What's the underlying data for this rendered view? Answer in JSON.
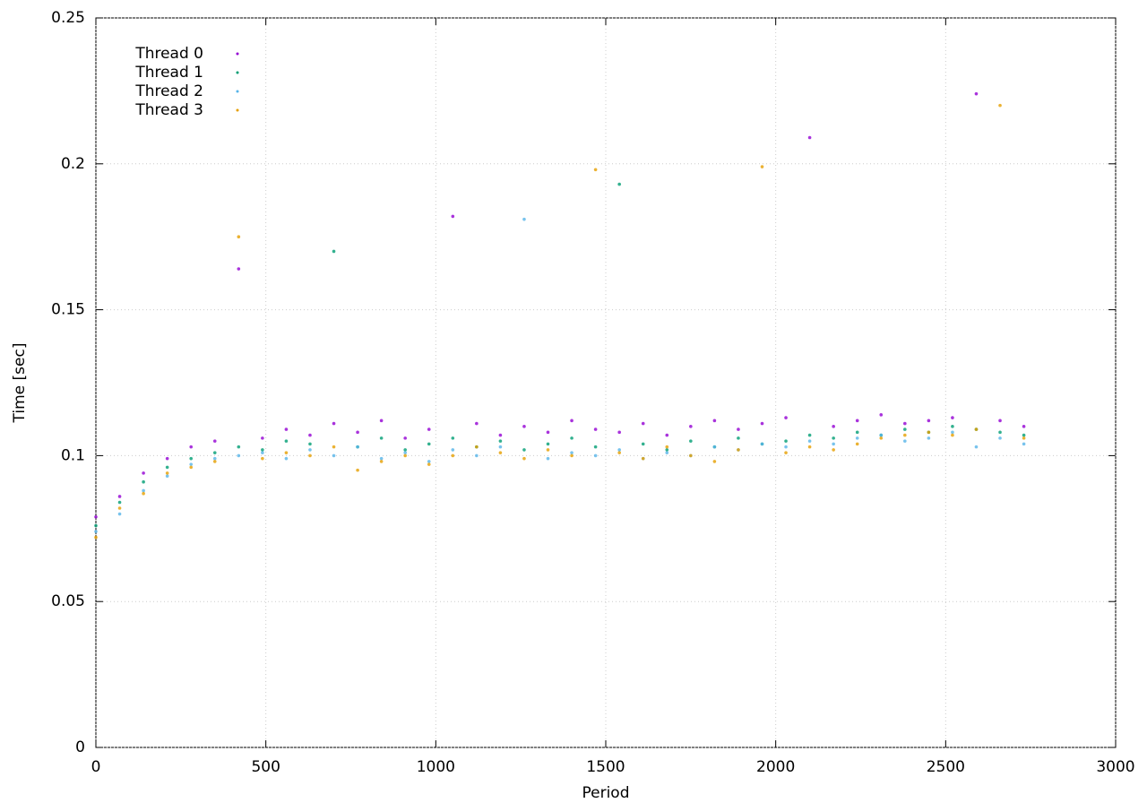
{
  "chart_data": {
    "type": "scatter",
    "x_label": "Period",
    "y_label": "Time [sec]",
    "xlim": [
      0,
      3000
    ],
    "xticks": [
      0,
      500,
      1000,
      1500,
      2000,
      2500,
      3000
    ],
    "ylim": [
      0,
      0.25
    ],
    "yticks": [
      0,
      0.05,
      0.1,
      0.15,
      0.2,
      0.25
    ],
    "grid": true,
    "legend": "top-left",
    "x": [
      0,
      70,
      140,
      210,
      280,
      350,
      420,
      490,
      560,
      630,
      700,
      770,
      840,
      910,
      980,
      1050,
      1120,
      1190,
      1260,
      1330,
      1400,
      1470,
      1540,
      1610,
      1680,
      1750,
      1820,
      1890,
      1960,
      2030,
      2100,
      2170,
      2240,
      2310,
      2380,
      2450,
      2520,
      2590,
      2660,
      2730
    ],
    "series": [
      {
        "name": "Thread 0",
        "color": "#9400d3",
        "values": [
          0.079,
          0.086,
          0.094,
          0.099,
          0.103,
          0.105,
          0.164,
          0.106,
          0.109,
          0.107,
          0.111,
          0.108,
          0.112,
          0.106,
          0.109,
          0.182,
          0.111,
          0.107,
          0.11,
          0.108,
          0.112,
          0.109,
          0.108,
          0.111,
          0.107,
          0.11,
          0.112,
          0.109,
          0.111,
          0.113,
          0.209,
          0.11,
          0.112,
          0.114,
          0.111,
          0.112,
          0.113,
          0.224,
          0.112,
          0.11
        ]
      },
      {
        "name": "Thread 1",
        "color": "#009e73",
        "values": [
          0.076,
          0.084,
          0.091,
          0.096,
          0.099,
          0.101,
          0.103,
          0.102,
          0.105,
          0.104,
          0.17,
          0.103,
          0.106,
          0.102,
          0.104,
          0.106,
          0.103,
          0.105,
          0.102,
          0.104,
          0.106,
          0.103,
          0.193,
          0.104,
          0.102,
          0.105,
          0.103,
          0.106,
          0.104,
          0.105,
          0.107,
          0.106,
          0.108,
          0.107,
          0.109,
          0.108,
          0.11,
          0.109,
          0.108,
          0.107
        ]
      },
      {
        "name": "Thread 2",
        "color": "#56b4e9",
        "values": [
          0.074,
          0.08,
          0.088,
          0.093,
          0.097,
          0.099,
          0.1,
          0.101,
          0.099,
          0.102,
          0.1,
          0.103,
          0.099,
          0.101,
          0.098,
          0.102,
          0.1,
          0.103,
          0.181,
          0.099,
          0.101,
          0.1,
          0.102,
          0.099,
          0.101,
          0.1,
          0.103,
          0.102,
          0.104,
          0.103,
          0.105,
          0.104,
          0.106,
          0.107,
          0.105,
          0.106,
          0.108,
          0.103,
          0.106,
          0.104
        ]
      },
      {
        "name": "Thread 3",
        "color": "#e69f00",
        "values": [
          0.072,
          0.082,
          0.087,
          0.094,
          0.096,
          0.098,
          0.175,
          0.099,
          0.101,
          0.1,
          0.103,
          0.095,
          0.098,
          0.1,
          0.097,
          0.1,
          0.103,
          0.101,
          0.099,
          0.102,
          0.1,
          0.198,
          0.101,
          0.099,
          0.103,
          0.1,
          0.098,
          0.102,
          0.199,
          0.101,
          0.103,
          0.102,
          0.104,
          0.106,
          0.107,
          0.108,
          0.107,
          0.109,
          0.22,
          0.106
        ]
      }
    ]
  }
}
